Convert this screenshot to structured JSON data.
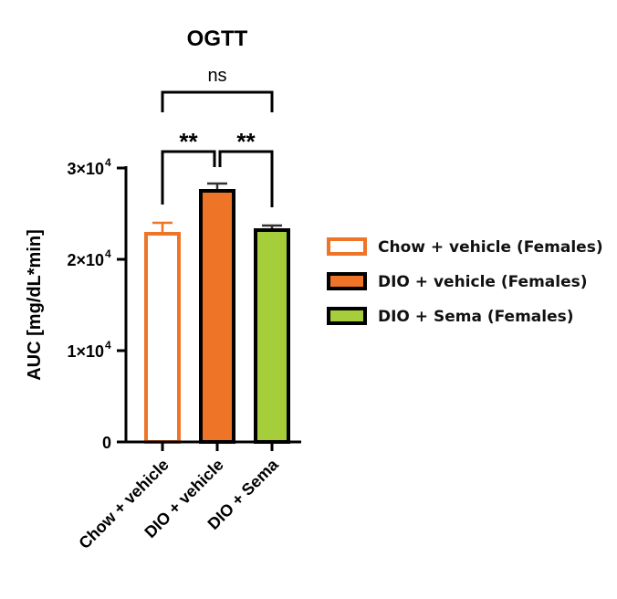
{
  "chart_data": {
    "type": "bar",
    "title": "OGTT",
    "xlabel": "",
    "ylabel": "AUC [mg/dL*min]",
    "ylim": [
      0,
      30000
    ],
    "yticks": [
      0,
      10000,
      20000,
      30000
    ],
    "ytick_labels": [
      "0",
      "1×10",
      "2×10",
      "3×10"
    ],
    "ytick_exponent": "4",
    "categories": [
      "Chow + vehicle",
      "DIO + vehicle",
      "DIO + Sema"
    ],
    "values": [
      22800,
      27500,
      23200
    ],
    "errors": [
      1200,
      800,
      500
    ],
    "colors": {
      "fill": [
        "#ffffff",
        "#ee7427",
        "#a6cd3a"
      ],
      "edge": [
        "#ee7427",
        "#000000",
        "#000000"
      ]
    },
    "legend": {
      "placement": "right",
      "entries": [
        "Chow + vehicle (Females)",
        "DIO + vehicle (Females)",
        "DIO + Sema (Females)"
      ]
    },
    "significance": [
      {
        "groups": [
          0,
          2
        ],
        "label": "ns"
      },
      {
        "groups": [
          0,
          1
        ],
        "label": "**"
      },
      {
        "groups": [
          1,
          2
        ],
        "label": "**"
      }
    ],
    "grid": false
  }
}
